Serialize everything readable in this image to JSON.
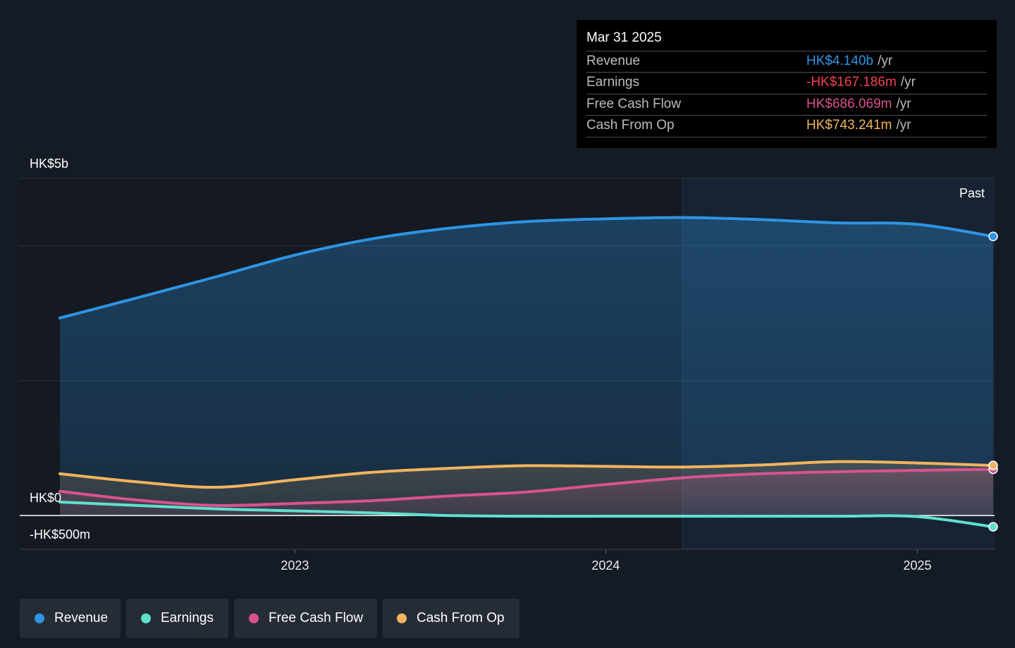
{
  "tooltip": {
    "date": "Mar 31 2025",
    "rows": [
      {
        "label": "Revenue",
        "value": "HK$4.140b",
        "unit": "/yr",
        "color": "#2d95e3"
      },
      {
        "label": "Earnings",
        "value": "-HK$167.186m",
        "unit": "/yr",
        "color": "#f0424e"
      },
      {
        "label": "Free Cash Flow",
        "value": "HK$686.069m",
        "unit": "/yr",
        "color": "#d9538f"
      },
      {
        "label": "Cash From Op",
        "value": "HK$743.241m",
        "unit": "/yr",
        "color": "#f2b45e"
      }
    ]
  },
  "legend": [
    {
      "label": "Revenue",
      "color": "#2d95e3"
    },
    {
      "label": "Earnings",
      "color": "#5fe0cf"
    },
    {
      "label": "Free Cash Flow",
      "color": "#d9538f"
    },
    {
      "label": "Cash From Op",
      "color": "#f2b45e"
    }
  ],
  "chart_data": {
    "type": "area",
    "y_tick_labels": [
      "HK$5b",
      "HK$0",
      "-HK$500m"
    ],
    "x_tick_labels": [
      "2023",
      "2024",
      "2025"
    ],
    "past_label": "Past",
    "ylim": [
      -500,
      5000
    ],
    "y_unit": "HK$ millions",
    "highlight_from": "2024-03-31",
    "x": [
      "2022-03-31",
      "2022-06-30",
      "2022-09-30",
      "2022-12-31",
      "2023-03-31",
      "2023-06-30",
      "2023-09-30",
      "2023-12-31",
      "2024-03-31",
      "2024-06-30",
      "2024-09-30",
      "2024-12-31",
      "2025-03-31"
    ],
    "series": [
      {
        "name": "Revenue",
        "color": "#2d95e3",
        "values": [
          2930,
          3230,
          3540,
          3860,
          4100,
          4260,
          4360,
          4400,
          4420,
          4390,
          4340,
          4320,
          4140
        ]
      },
      {
        "name": "Earnings",
        "color": "#5fe0cf",
        "values": [
          200,
          150,
          100,
          70,
          40,
          0,
          -10,
          -10,
          -10,
          -10,
          -10,
          -15,
          -167
        ]
      },
      {
        "name": "Free Cash Flow",
        "color": "#d9538f",
        "values": [
          360,
          230,
          150,
          180,
          220,
          290,
          350,
          460,
          560,
          620,
          650,
          670,
          686
        ]
      },
      {
        "name": "Cash From Op",
        "color": "#f2b45e",
        "values": [
          620,
          500,
          420,
          530,
          640,
          700,
          740,
          730,
          720,
          750,
          800,
          780,
          743
        ]
      }
    ]
  }
}
